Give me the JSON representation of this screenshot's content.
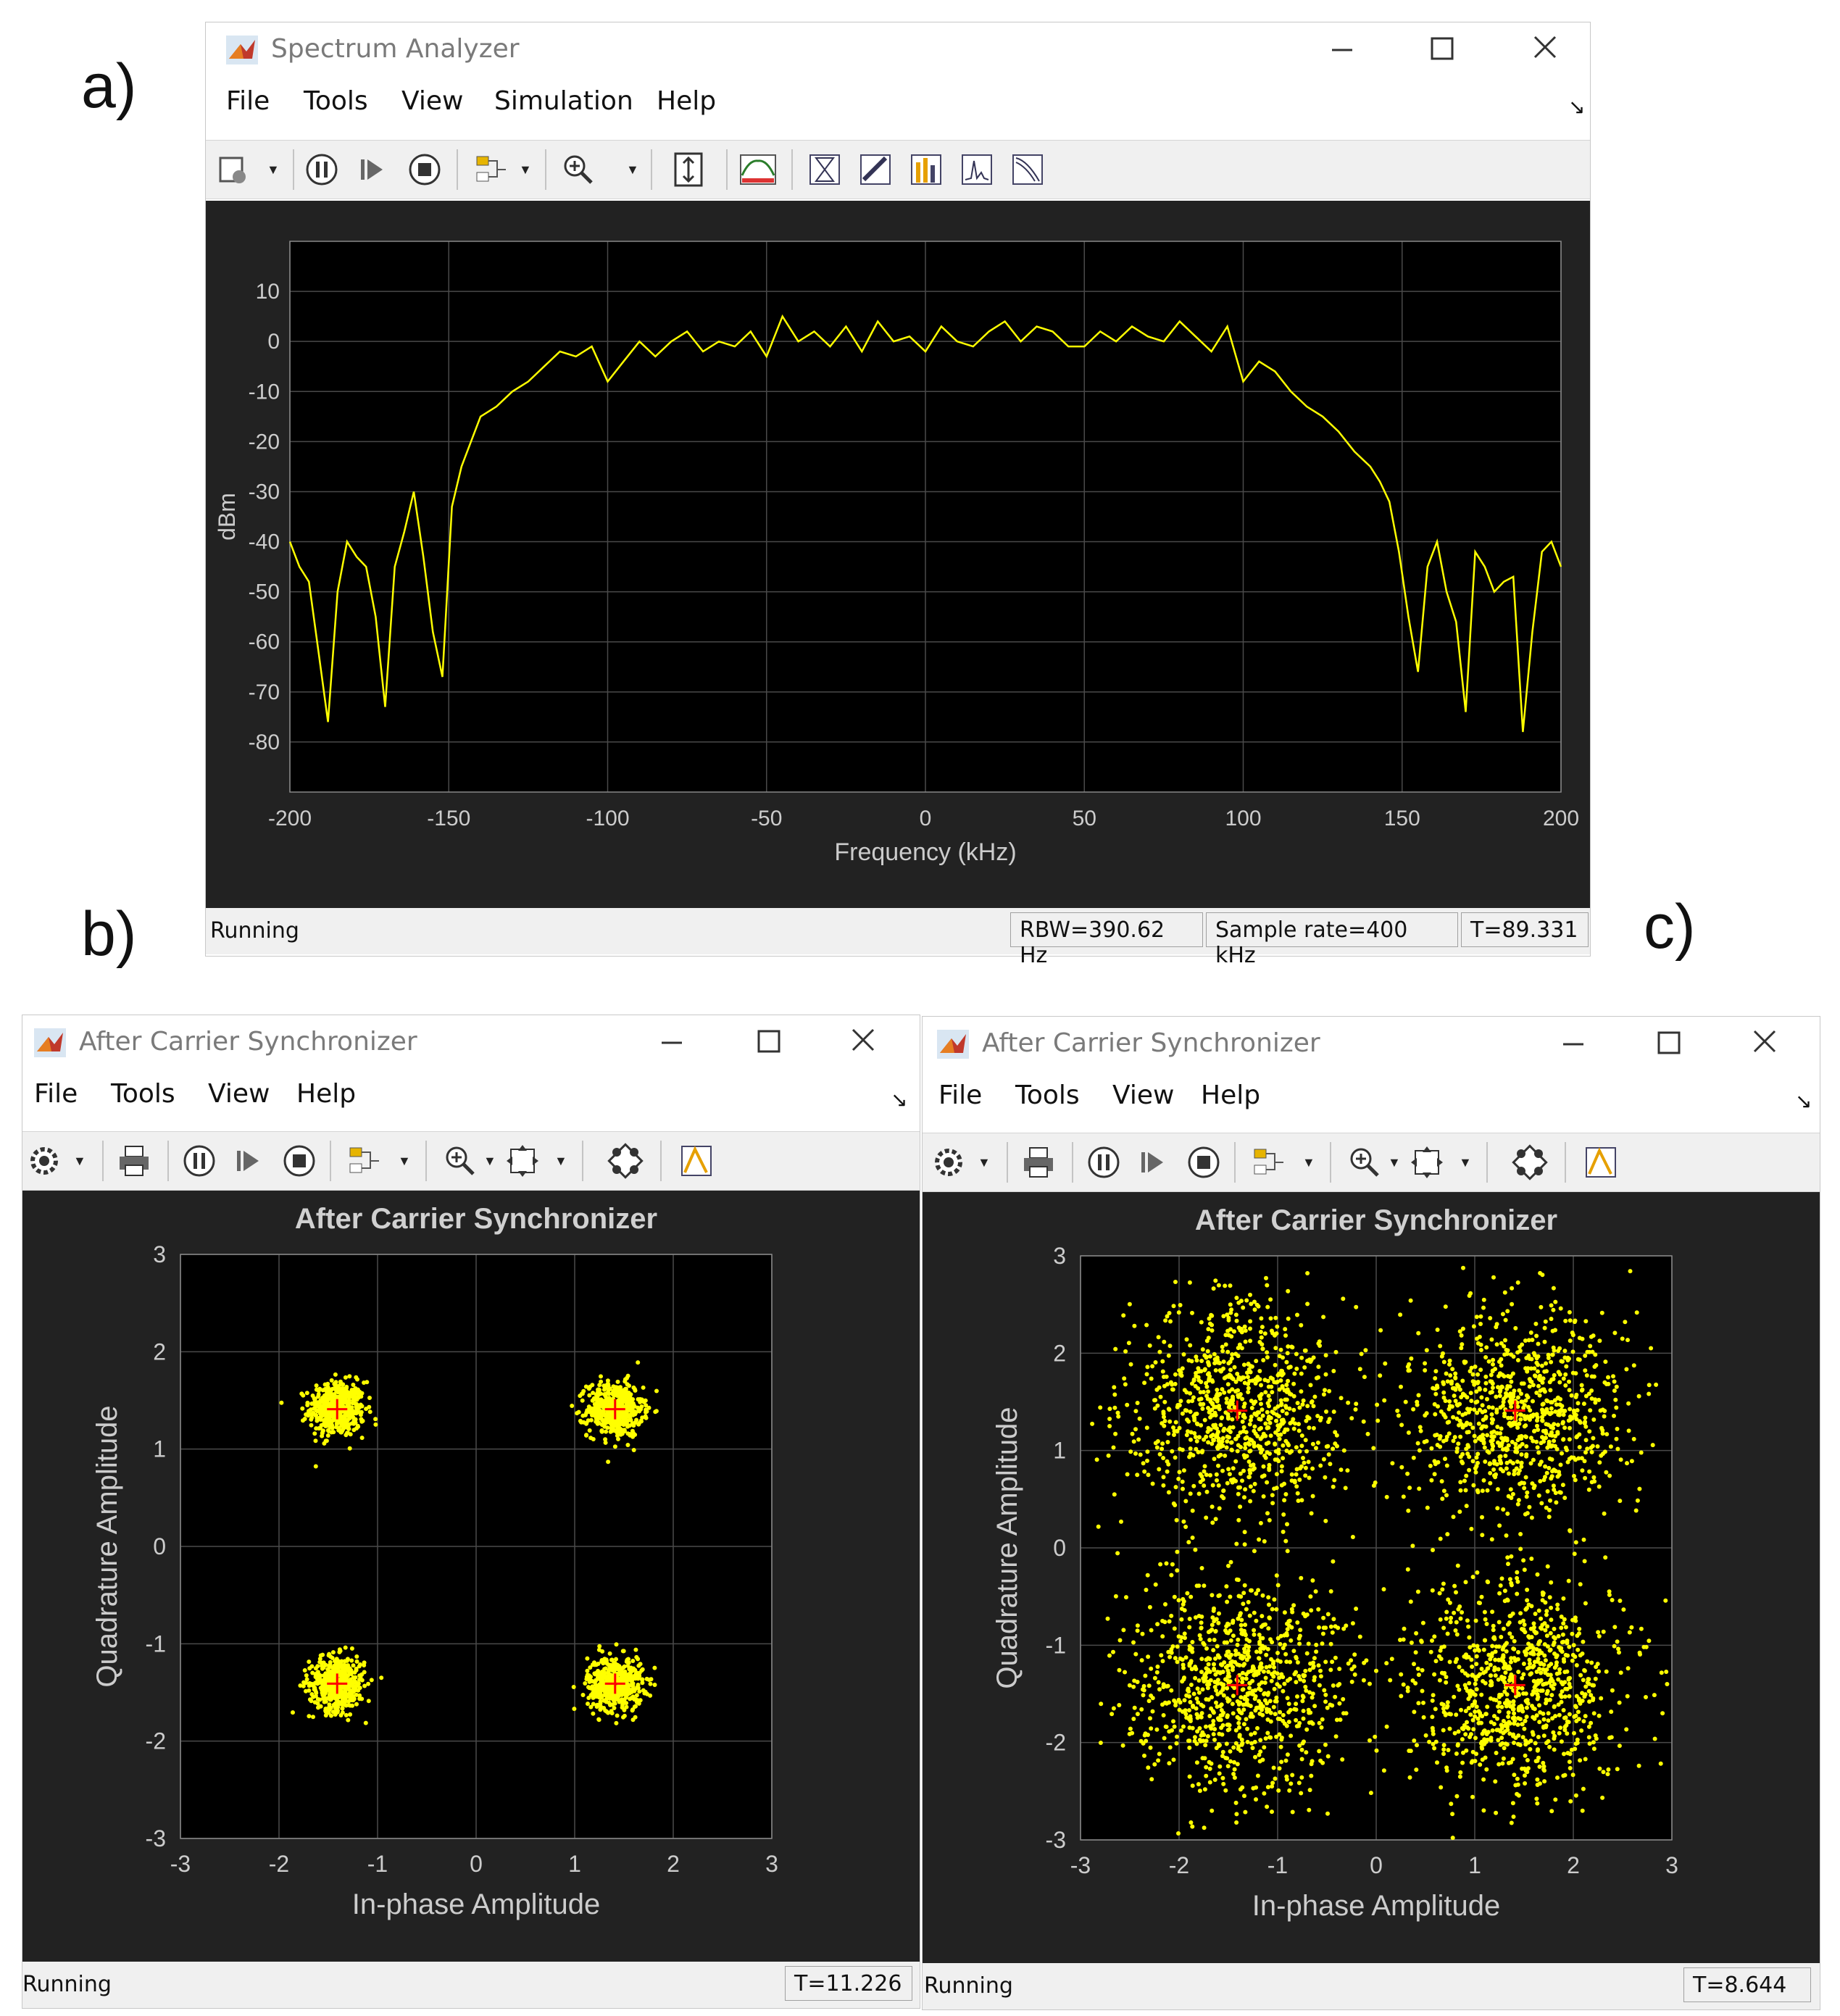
{
  "panel_labels": {
    "a": "a)",
    "b": "b)",
    "c": "c)"
  },
  "spectrum": {
    "title": "Spectrum Analyzer",
    "menu": [
      "File",
      "Tools",
      "View",
      "Simulation",
      "Help"
    ],
    "status": "Running",
    "rbw": "RBW=390.62 Hz",
    "sample_rate": "Sample rate=400 kHz",
    "time": "T=89.331"
  },
  "const_b": {
    "title": "After Carrier Synchronizer",
    "menu": [
      "File",
      "Tools",
      "View",
      "Help"
    ],
    "status": "Running",
    "time": "T=11.226"
  },
  "const_c": {
    "title": "After Carrier Synchronizer",
    "menu": [
      "File",
      "Tools",
      "View",
      "Help"
    ],
    "status": "Running",
    "time": "T=8.644"
  },
  "colors": {
    "trace": "#ffff00",
    "plot_bg": "#000000",
    "frame_bg": "#222222",
    "reference": "#ff0000"
  },
  "chart_data": [
    {
      "type": "line",
      "xlabel": "Frequency (kHz)",
      "ylabel": "dBm",
      "xlim": [
        -200,
        200
      ],
      "ylim": [
        -90,
        20
      ],
      "xticks": [
        -200,
        -150,
        -100,
        -50,
        0,
        50,
        100,
        150,
        200
      ],
      "yticks": [
        10,
        0,
        -10,
        -20,
        -30,
        -40,
        -50,
        -60,
        -70,
        -80
      ],
      "grid": true,
      "series": [
        {
          "x": [
            -200,
            -197,
            -194,
            -191,
            -188,
            -185,
            -182,
            -179,
            -176,
            -173,
            -170,
            -167,
            -164,
            -161,
            -158,
            -155,
            -152,
            -149,
            -146,
            -143,
            -140,
            -135,
            -130,
            -125,
            -120,
            -115,
            -110,
            -105,
            -100,
            -95,
            -90,
            -85,
            -80,
            -75,
            -70,
            -65,
            -60,
            -55,
            -50,
            -45,
            -40,
            -35,
            -30,
            -25,
            -20,
            -15,
            -10,
            -5,
            0,
            5,
            10,
            15,
            20,
            25,
            30,
            35,
            40,
            45,
            50,
            55,
            60,
            65,
            70,
            75,
            80,
            85,
            90,
            95,
            100,
            105,
            110,
            115,
            120,
            125,
            130,
            135,
            140,
            143,
            146,
            149,
            152,
            155,
            158,
            161,
            164,
            167,
            170,
            173,
            176,
            179,
            182,
            185,
            188,
            191,
            194,
            197,
            200
          ],
          "y": [
            -40,
            -45,
            -48,
            -62,
            -76,
            -50,
            -40,
            -43,
            -45,
            -55,
            -73,
            -45,
            -38,
            -30,
            -43,
            -58,
            -67,
            -33,
            -25,
            -20,
            -15,
            -13,
            -10,
            -8,
            -5,
            -2,
            -3,
            -1,
            -8,
            -4,
            0,
            -3,
            0,
            2,
            -2,
            0,
            -1,
            2,
            -3,
            5,
            0,
            2,
            -1,
            3,
            -2,
            4,
            0,
            1,
            -2,
            3,
            0,
            -1,
            2,
            4,
            0,
            3,
            2,
            -1,
            -1,
            2,
            0,
            3,
            1,
            0,
            4,
            1,
            -2,
            3,
            -8,
            -4,
            -6,
            -10,
            -13,
            -15,
            -18,
            -22,
            -25,
            -28,
            -32,
            -42,
            -55,
            -66,
            -45,
            -40,
            -50,
            -56,
            -74,
            -42,
            -45,
            -50,
            -48,
            -47,
            -78,
            -58,
            -42,
            -40,
            -45
          ]
        }
      ]
    },
    {
      "type": "scatter",
      "title": "After Carrier Synchronizer",
      "xlabel": "In-phase Amplitude",
      "ylabel": "Quadrature Amplitude",
      "xlim": [
        -3,
        3
      ],
      "ylim": [
        -3,
        3
      ],
      "xticks": [
        -3,
        -2,
        -1,
        0,
        1,
        2,
        3
      ],
      "yticks": [
        3,
        2,
        1,
        0,
        -1,
        -2,
        -3
      ],
      "grid": true,
      "reference_points": [
        [
          -1.41,
          1.41
        ],
        [
          1.41,
          1.41
        ],
        [
          -1.41,
          -1.41
        ],
        [
          1.41,
          -1.41
        ]
      ],
      "cluster_centers": [
        [
          -1.41,
          1.41
        ],
        [
          1.41,
          1.41
        ],
        [
          -1.41,
          -1.41
        ],
        [
          1.41,
          -1.41
        ]
      ],
      "cluster_spread": 0.14
    },
    {
      "type": "scatter",
      "title": "After Carrier Synchronizer",
      "xlabel": "In-phase Amplitude",
      "ylabel": "Quadrature Amplitude",
      "xlim": [
        -3,
        3
      ],
      "ylim": [
        -3,
        3
      ],
      "xticks": [
        -3,
        -2,
        -1,
        0,
        1,
        2,
        3
      ],
      "yticks": [
        3,
        2,
        1,
        0,
        -1,
        -2,
        -3
      ],
      "grid": true,
      "reference_points": [
        [
          -1.41,
          1.41
        ],
        [
          1.41,
          1.41
        ],
        [
          -1.41,
          -1.41
        ],
        [
          1.41,
          -1.41
        ]
      ],
      "cluster_centers": [
        [
          -1.41,
          1.41
        ],
        [
          1.41,
          1.41
        ],
        [
          -1.41,
          -1.41
        ],
        [
          1.41,
          -1.41
        ]
      ],
      "cluster_spread": 0.55
    }
  ]
}
